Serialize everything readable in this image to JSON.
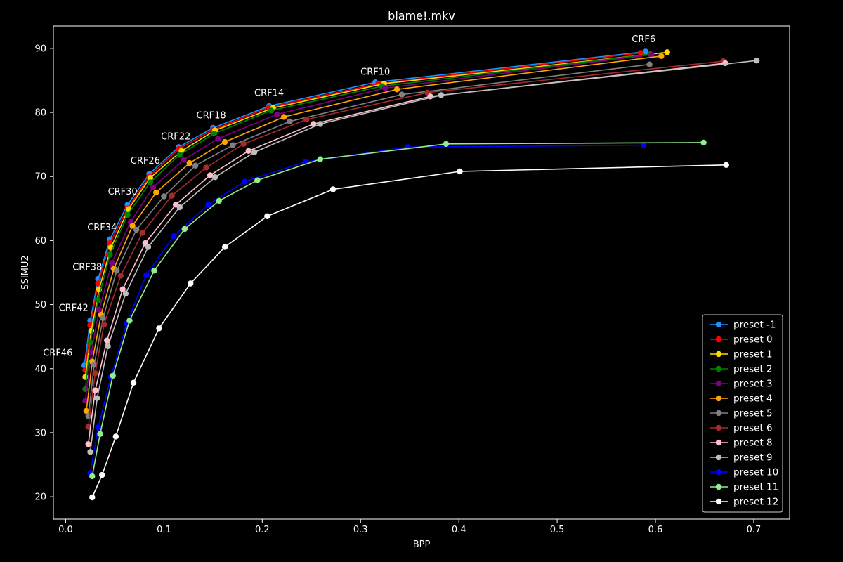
{
  "chart_data": {
    "type": "line",
    "title": "blame!.mkv",
    "xlabel": "BPP",
    "ylabel": "SSIMU2",
    "xlim": [
      -0.0125,
      0.7365
    ],
    "ylim": [
      16.5,
      93.5
    ],
    "xticks": [
      0.0,
      0.1,
      0.2,
      0.3,
      0.4,
      0.5,
      0.6,
      0.7
    ],
    "xtick_labels": [
      "0.0",
      "0.1",
      "0.2",
      "0.3",
      "0.4",
      "0.5",
      "0.6",
      "0.7"
    ],
    "yticks": [
      20,
      30,
      40,
      50,
      60,
      70,
      80,
      90
    ],
    "ytick_labels": [
      "20",
      "30",
      "40",
      "50",
      "60",
      "70",
      "80",
      "90"
    ],
    "grid": false,
    "legend_position": "bottom-right",
    "background": "#000000",
    "foreground": "#ffffff",
    "annotations": [
      {
        "text": "CRF6",
        "x": 0.588,
        "y": 91.0
      },
      {
        "text": "CRF10",
        "x": 0.315,
        "y": 85.9
      },
      {
        "text": "CRF14",
        "x": 0.207,
        "y": 82.6
      },
      {
        "text": "CRF18",
        "x": 0.148,
        "y": 79.1
      },
      {
        "text": "CRF22",
        "x": 0.112,
        "y": 75.8
      },
      {
        "text": "CRF26",
        "x": 0.081,
        "y": 72.0
      },
      {
        "text": "CRF30",
        "x": 0.058,
        "y": 67.2
      },
      {
        "text": "CRF34",
        "x": 0.037,
        "y": 61.6
      },
      {
        "text": "CRF38",
        "x": 0.022,
        "y": 55.4
      },
      {
        "text": "CRF42",
        "x": 0.008,
        "y": 49.0
      },
      {
        "text": "CRF46",
        "x": -0.008,
        "y": 42.0
      }
    ],
    "series": [
      {
        "name": "preset -1",
        "color": "#1e90ff",
        "x": [
          0.019,
          0.025,
          0.033,
          0.045,
          0.063,
          0.085,
          0.115,
          0.15,
          0.207,
          0.315,
          0.59
        ],
        "y": [
          40.5,
          47.5,
          54.0,
          60.2,
          65.6,
          70.4,
          74.6,
          77.6,
          81.0,
          84.7,
          89.5
        ]
      },
      {
        "name": "preset 0",
        "color": "#ff0000",
        "x": [
          0.02,
          0.025,
          0.033,
          0.045,
          0.063,
          0.085,
          0.115,
          0.15,
          0.207,
          0.318,
          0.585
        ],
        "y": [
          39.8,
          46.8,
          53.3,
          59.6,
          65.0,
          70.0,
          74.3,
          77.3,
          80.8,
          84.5,
          89.3
        ]
      },
      {
        "name": "preset 1",
        "color": "#ffd700",
        "x": [
          0.02,
          0.026,
          0.034,
          0.046,
          0.064,
          0.086,
          0.118,
          0.152,
          0.211,
          0.324,
          0.612
        ],
        "y": [
          38.7,
          45.9,
          52.4,
          58.9,
          64.9,
          69.8,
          74.0,
          77.2,
          80.7,
          84.5,
          89.4
        ]
      },
      {
        "name": "preset 2",
        "color": "#008000",
        "x": [
          0.02,
          0.025,
          0.033,
          0.045,
          0.063,
          0.086,
          0.116,
          0.151,
          0.209,
          0.322,
          0.595
        ],
        "y": [
          36.8,
          44.1,
          50.7,
          57.8,
          64.0,
          69.1,
          73.4,
          76.7,
          80.3,
          84.1,
          89.1
        ]
      },
      {
        "name": "preset 3",
        "color": "#800080",
        "x": [
          0.02,
          0.026,
          0.034,
          0.047,
          0.066,
          0.089,
          0.12,
          0.155,
          0.215,
          0.325,
          0.596
        ],
        "y": [
          35.0,
          42.5,
          49.2,
          56.5,
          62.9,
          68.3,
          72.6,
          75.9,
          79.7,
          83.8,
          89.0
        ]
      },
      {
        "name": "preset 4",
        "color": "#ffa500",
        "x": [
          0.021,
          0.027,
          0.036,
          0.049,
          0.068,
          0.092,
          0.126,
          0.162,
          0.222,
          0.337,
          0.606
        ],
        "y": [
          33.4,
          41.1,
          48.4,
          55.6,
          62.3,
          67.5,
          72.1,
          75.4,
          79.3,
          83.6,
          88.8
        ]
      },
      {
        "name": "preset 5",
        "color": "#808080",
        "x": [
          0.023,
          0.029,
          0.038,
          0.052,
          0.072,
          0.1,
          0.132,
          0.17,
          0.228,
          0.342,
          0.594
        ],
        "y": [
          32.6,
          40.6,
          47.9,
          55.3,
          61.7,
          66.9,
          71.7,
          74.9,
          78.6,
          82.8,
          87.5
        ]
      },
      {
        "name": "preset 6",
        "color": "#a52a2a",
        "x": [
          0.023,
          0.03,
          0.039,
          0.056,
          0.078,
          0.108,
          0.143,
          0.181,
          0.245,
          0.368,
          0.669
        ],
        "y": [
          30.9,
          39.3,
          46.9,
          54.5,
          61.2,
          67.0,
          71.4,
          75.1,
          78.9,
          83.1,
          88.0
        ]
      },
      {
        "name": "preset 8",
        "color": "#ffc0cb",
        "x": [
          0.023,
          0.03,
          0.042,
          0.058,
          0.081,
          0.112,
          0.147,
          0.186,
          0.252,
          0.371,
          0.671
        ],
        "y": [
          28.2,
          36.6,
          44.4,
          52.4,
          59.6,
          65.6,
          70.2,
          74.0,
          78.2,
          82.5,
          87.7
        ]
      },
      {
        "name": "preset 9",
        "color": "#bebebe",
        "x": [
          0.025,
          0.032,
          0.043,
          0.061,
          0.084,
          0.116,
          0.152,
          0.192,
          0.259,
          0.382,
          0.703
        ],
        "y": [
          27.0,
          35.4,
          43.5,
          51.7,
          59.0,
          65.2,
          69.9,
          73.8,
          78.2,
          82.7,
          88.1
        ]
      },
      {
        "name": "preset 10",
        "color": "#0000ff",
        "x": [
          0.025,
          0.033,
          0.046,
          0.062,
          0.082,
          0.11,
          0.145,
          0.182,
          0.244,
          0.348,
          0.588
        ],
        "y": [
          23.7,
          30.8,
          38.7,
          47.0,
          54.6,
          60.7,
          65.6,
          69.2,
          72.3,
          74.6,
          74.9
        ]
      },
      {
        "name": "preset 11",
        "color": "#90ee90",
        "x": [
          0.027,
          0.035,
          0.048,
          0.065,
          0.09,
          0.121,
          0.156,
          0.195,
          0.259,
          0.387,
          0.649
        ],
        "y": [
          23.2,
          29.8,
          38.9,
          47.5,
          55.3,
          61.8,
          66.2,
          69.4,
          72.7,
          75.1,
          75.3
        ]
      },
      {
        "name": "preset 12",
        "color": "#ffffff",
        "x": [
          0.027,
          0.037,
          0.051,
          0.069,
          0.095,
          0.127,
          0.162,
          0.205,
          0.272,
          0.401,
          0.672
        ],
        "y": [
          19.9,
          23.4,
          29.4,
          37.8,
          46.3,
          53.3,
          59.0,
          63.8,
          68.0,
          70.8,
          71.8
        ]
      }
    ]
  }
}
